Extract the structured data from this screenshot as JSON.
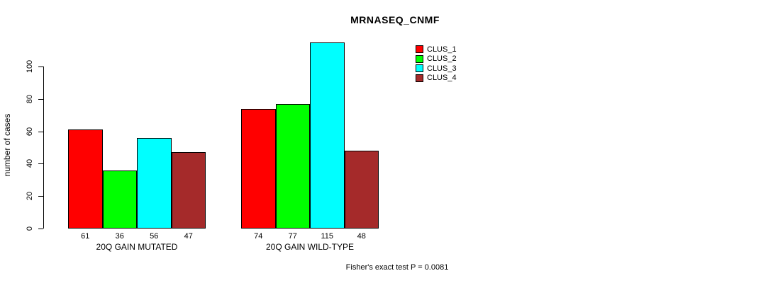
{
  "title": "MRNASEQ_CNMF",
  "annotation": "Fisher's exact test P = 0.0081",
  "chart_data": {
    "type": "bar",
    "title": "MRNASEQ_CNMF",
    "ylabel": "number of cases",
    "xlabel": "",
    "categories": [
      "20Q GAIN MUTATED",
      "20Q GAIN WILD-TYPE"
    ],
    "series": [
      {
        "name": "CLUS_1",
        "color": "#ff0000",
        "values": [
          61,
          74
        ]
      },
      {
        "name": "CLUS_2",
        "color": "#00ff00",
        "values": [
          36,
          77
        ]
      },
      {
        "name": "CLUS_3",
        "color": "#00ffff",
        "values": [
          56,
          115
        ]
      },
      {
        "name": "CLUS_4",
        "color": "#a52a2a",
        "values": [
          47,
          48
        ]
      }
    ],
    "yticks": [
      0,
      20,
      40,
      60,
      80,
      100
    ],
    "ylim": [
      0,
      115
    ],
    "bar_value_labels": true,
    "grid": false,
    "legend_position": "top-right",
    "annotation": "Fisher's exact test P = 0.0081"
  }
}
